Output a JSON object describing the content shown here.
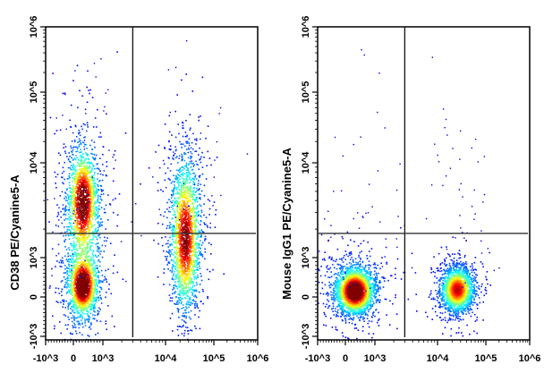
{
  "chart_data": [
    {
      "type": "scatter",
      "subtype": "flow-cytometry-density-dot-plot",
      "xlabel": "",
      "ylabel": "CD38 PE/Cyanine5-A",
      "x_scale": "biexponential",
      "y_scale": "biexponential",
      "xlim": [
        -1000,
        1000000
      ],
      "ylim": [
        -1000,
        1000000
      ],
      "x_ticks": [
        "-10^3",
        "0",
        "10^3",
        "10^4",
        "10^5",
        "10^6"
      ],
      "y_ticks": [
        "-10^3",
        "0",
        "10^3",
        "10^4",
        "10^5",
        "10^6"
      ],
      "gates": {
        "x": 3000,
        "y": 1800
      },
      "colormap": "jet",
      "populations": [
        {
          "x_center": 300,
          "y_center": 300,
          "y_range": [
            -800,
            50000
          ]
        },
        {
          "x_center": 25000,
          "y_center": 1500,
          "y_range": [
            -800,
            30000
          ]
        }
      ]
    },
    {
      "type": "scatter",
      "subtype": "flow-cytometry-density-dot-plot",
      "xlabel": "",
      "ylabel": "Mouse IgG1 PE/Cyanine5-A",
      "x_scale": "biexponential",
      "y_scale": "biexponential",
      "xlim": [
        -1000,
        1000000
      ],
      "ylim": [
        -1000,
        1000000
      ],
      "x_ticks": [
        "-10^3",
        "0",
        "10^3",
        "10^4",
        "10^5",
        "10^6"
      ],
      "y_ticks": [
        "-10^3",
        "0",
        "10^3",
        "10^4",
        "10^5",
        "10^6"
      ],
      "gates": {
        "x": 3000,
        "y": 1800
      },
      "colormap": "jet",
      "populations": [
        {
          "x_center": 300,
          "y_center": 150,
          "y_range": [
            -900,
            2000
          ]
        },
        {
          "x_center": 25000,
          "y_center": 200,
          "y_range": [
            -900,
            2000
          ]
        }
      ]
    }
  ]
}
